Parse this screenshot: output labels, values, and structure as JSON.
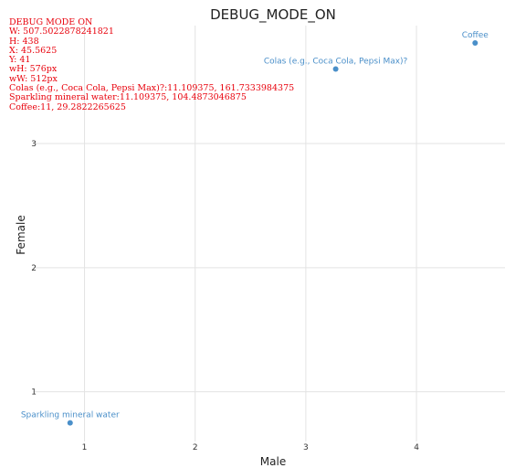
{
  "chart_data": {
    "type": "scatter",
    "title": "DEBUG_MODE_ON",
    "xlabel": "Male",
    "ylabel": "Female",
    "xlim": [
      0.55,
      4.8
    ],
    "ylim": [
      0.6,
      3.95
    ],
    "x_ticks": [
      1,
      2,
      3,
      4
    ],
    "y_ticks": [
      1,
      2,
      3
    ],
    "point_color": "#4a8fc9",
    "points": [
      {
        "label": "Coffee",
        "x": 4.53,
        "y": 3.81
      },
      {
        "label": "Colas (e.g., Coca Cola, Pepsi Max)?",
        "x": 3.27,
        "y": 3.6
      },
      {
        "label": "Sparkling mineral water",
        "x": 0.87,
        "y": 0.75
      }
    ]
  },
  "debug": {
    "color": "#e8000b",
    "lines": [
      "DEBUG MODE ON",
      "W: 507.5022878241821",
      "H: 438",
      "X: 45.5625",
      "Y: 41",
      "wH: 576px",
      "wW: 512px",
      "Colas (e.g., Coca Cola, Pepsi Max)?:11.109375, 161.7333984375",
      "Sparkling mineral water:11.109375, 104.4873046875",
      "Coffee:11, 29.2822265625"
    ]
  }
}
